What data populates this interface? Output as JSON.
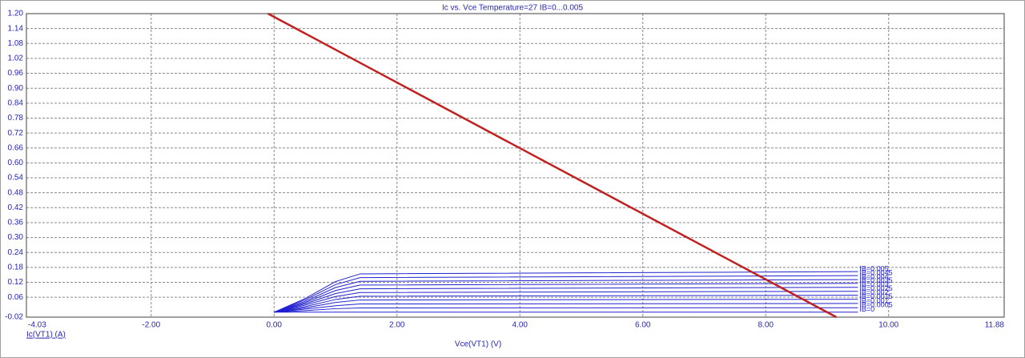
{
  "chart_data": {
    "type": "line",
    "title": "Ic vs. Vce Temperature=27 IB=0...0.005",
    "x_label": "Vce(VT1) (V)",
    "y_label": "Ic(VT1) (A)",
    "xlim": [
      -4.03,
      11.88
    ],
    "ylim": [
      -0.02,
      1.2
    ],
    "grid": true,
    "xticks": [
      -4.03,
      {
        "value": -2,
        "label": "-2.00"
      },
      {
        "value": 0,
        "label": "0.00"
      },
      {
        "value": 2,
        "label": "2.00"
      },
      {
        "value": 4,
        "label": "4.00"
      },
      {
        "value": 6,
        "label": "6.00"
      },
      {
        "value": 8,
        "label": "8.00"
      },
      {
        "value": 10,
        "label": "10.00"
      },
      11.88
    ],
    "yticks": [
      -0.02,
      {
        "value": 0.06,
        "label": "0.06"
      },
      {
        "value": 0.12,
        "label": "0.12"
      },
      {
        "value": 0.18,
        "label": "0.18"
      },
      {
        "value": 0.24,
        "label": "0.24"
      },
      {
        "value": 0.3,
        "label": "0.30"
      },
      {
        "value": 0.36,
        "label": "0.36"
      },
      {
        "value": 0.42,
        "label": "0.42"
      },
      {
        "value": 0.48,
        "label": "0.48"
      },
      {
        "value": 0.54,
        "label": "0.54"
      },
      {
        "value": 0.6,
        "label": "0.60"
      },
      {
        "value": 0.66,
        "label": "0.66"
      },
      {
        "value": 0.72,
        "label": "0.72"
      },
      {
        "value": 0.78,
        "label": "0.78"
      },
      {
        "value": 0.84,
        "label": "0.84"
      },
      {
        "value": 0.9,
        "label": "0.90"
      },
      {
        "value": 0.96,
        "label": "0.96"
      },
      {
        "value": 1.02,
        "label": "1.02"
      },
      {
        "value": 1.08,
        "label": "1.08"
      },
      {
        "value": 1.14,
        "label": "1.14"
      },
      {
        "value": 1.2,
        "label": "1.20"
      }
    ],
    "series": [
      {
        "name": "IB=0",
        "color": "#2020d0",
        "x": [
          0,
          0.5,
          1.0,
          1.4,
          9.5
        ],
        "values": [
          0,
          0,
          0,
          0,
          0
        ]
      },
      {
        "name": "IB=0.0005",
        "color": "#2020d0",
        "x": [
          0,
          0.5,
          1.0,
          1.4,
          9.5
        ],
        "values": [
          0,
          0.006,
          0.014,
          0.017,
          0.018
        ]
      },
      {
        "name": "IB=0.001",
        "color": "#2020d0",
        "x": [
          0,
          0.5,
          1.0,
          1.4,
          9.5
        ],
        "values": [
          0,
          0.012,
          0.026,
          0.033,
          0.035
        ]
      },
      {
        "name": "IB=0.0015",
        "color": "#2020d0",
        "x": [
          0,
          0.5,
          1.0,
          1.4,
          9.5
        ],
        "values": [
          0,
          0.017,
          0.039,
          0.049,
          0.052
        ]
      },
      {
        "name": "IB=0.002",
        "color": "#2020d0",
        "x": [
          0,
          0.5,
          1.0,
          1.4,
          9.5
        ],
        "values": [
          0,
          0.022,
          0.051,
          0.064,
          0.068
        ]
      },
      {
        "name": "IB=0.0025",
        "color": "#2020d0",
        "x": [
          0,
          0.5,
          1.0,
          1.4,
          9.5
        ],
        "values": [
          0,
          0.028,
          0.063,
          0.079,
          0.084
        ]
      },
      {
        "name": "IB=0.003",
        "color": "#2020d0",
        "x": [
          0,
          0.5,
          1.0,
          1.4,
          9.5
        ],
        "values": [
          0,
          0.033,
          0.075,
          0.094,
          0.1
        ]
      },
      {
        "name": "IB=0.0035",
        "color": "#2020d0",
        "x": [
          0,
          0.5,
          1.0,
          1.4,
          9.5
        ],
        "values": [
          0,
          0.038,
          0.087,
          0.109,
          0.116
        ]
      },
      {
        "name": "IB=0.004",
        "color": "#2020d0",
        "x": [
          0,
          0.5,
          1.0,
          1.4,
          9.5
        ],
        "values": [
          0,
          0.043,
          0.099,
          0.124,
          0.131
        ]
      },
      {
        "name": "IB=0.0045",
        "color": "#2020d0",
        "x": [
          0,
          0.5,
          1.0,
          1.4,
          9.5
        ],
        "values": [
          0,
          0.049,
          0.111,
          0.139,
          0.147
        ]
      },
      {
        "name": "IB=0.005",
        "color": "#2020d0",
        "x": [
          0,
          0.5,
          1.0,
          1.4,
          9.5
        ],
        "values": [
          0,
          0.054,
          0.123,
          0.154,
          0.163
        ]
      },
      {
        "color": "#c02020",
        "x": [
          -0.1,
          9.15
        ],
        "values": [
          1.2,
          -0.02
        ]
      }
    ]
  }
}
